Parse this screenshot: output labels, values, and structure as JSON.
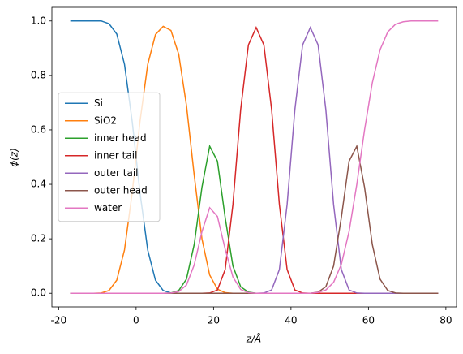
{
  "chart_data": {
    "type": "line",
    "xlabel": "z/Å",
    "ylabel": "ϕ(z)",
    "x": [
      -17,
      -15,
      -13,
      -11,
      -9,
      -7,
      -5,
      -3,
      -1,
      1,
      3,
      5,
      7,
      9,
      11,
      13,
      15,
      17,
      19,
      21,
      23,
      25,
      27,
      29,
      31,
      33,
      35,
      37,
      39,
      41,
      43,
      45,
      47,
      49,
      51,
      53,
      55,
      57,
      59,
      61,
      63,
      65,
      67,
      69,
      71,
      73,
      75,
      77,
      78
    ],
    "series": [
      {
        "name": "Si",
        "color": "#1f77b4",
        "values": [
          1,
          1,
          1,
          1,
          1,
          0.99,
          0.952,
          0.841,
          0.63,
          0.37,
          0.159,
          0.048,
          0.01,
          0.001,
          0,
          0,
          0,
          0,
          0,
          0,
          0,
          0,
          0,
          0,
          0,
          0,
          0,
          0,
          0,
          0,
          0,
          0,
          0,
          0,
          0,
          0,
          0,
          0,
          0,
          0,
          0,
          0,
          0,
          0,
          0,
          0,
          0,
          0,
          0
        ]
      },
      {
        "name": "SiO2",
        "color": "#ff7f0e",
        "values": [
          0,
          0,
          0,
          0,
          0.001,
          0.01,
          0.048,
          0.159,
          0.37,
          0.63,
          0.84,
          0.95,
          0.98,
          0.965,
          0.878,
          0.69,
          0.434,
          0.2,
          0.067,
          0.015,
          0.002,
          0,
          0,
          0,
          0,
          0,
          0,
          0,
          0,
          0,
          0,
          0,
          0,
          0,
          0,
          0,
          0,
          0,
          0,
          0,
          0,
          0,
          0,
          0,
          0,
          0,
          0,
          0,
          0
        ]
      },
      {
        "name": "inner head",
        "color": "#2ca02c",
        "values": [
          0,
          0,
          0,
          0,
          0,
          0,
          0,
          0,
          0,
          0,
          0,
          0,
          0,
          0.001,
          0.01,
          0.052,
          0.179,
          0.389,
          0.54,
          0.485,
          0.278,
          0.1,
          0.024,
          0.004,
          0,
          0,
          0,
          0,
          0,
          0,
          0,
          0,
          0,
          0,
          0,
          0,
          0,
          0,
          0,
          0,
          0,
          0,
          0,
          0,
          0,
          0,
          0,
          0,
          0
        ]
      },
      {
        "name": "inner tail",
        "color": "#d62728",
        "values": [
          0,
          0,
          0,
          0,
          0,
          0,
          0,
          0,
          0,
          0,
          0,
          0,
          0,
          0,
          0,
          0,
          0,
          0,
          0.001,
          0.012,
          0.087,
          0.326,
          0.674,
          0.912,
          0.976,
          0.912,
          0.674,
          0.326,
          0.087,
          0.012,
          0.001,
          0,
          0,
          0,
          0,
          0,
          0,
          0,
          0,
          0,
          0,
          0,
          0,
          0,
          0,
          0,
          0,
          0,
          0
        ]
      },
      {
        "name": "outer tail",
        "color": "#9467bd",
        "values": [
          0,
          0,
          0,
          0,
          0,
          0,
          0,
          0,
          0,
          0,
          0,
          0,
          0,
          0,
          0,
          0,
          0,
          0,
          0,
          0,
          0,
          0,
          0,
          0,
          0,
          0.001,
          0.012,
          0.087,
          0.326,
          0.674,
          0.912,
          0.976,
          0.912,
          0.674,
          0.326,
          0.087,
          0.012,
          0.001,
          0,
          0,
          0,
          0,
          0,
          0,
          0,
          0,
          0,
          0,
          0
        ]
      },
      {
        "name": "outer head",
        "color": "#8c564b",
        "values": [
          0,
          0,
          0,
          0,
          0,
          0,
          0,
          0,
          0,
          0,
          0,
          0,
          0,
          0,
          0,
          0,
          0,
          0,
          0,
          0,
          0,
          0,
          0,
          0,
          0,
          0,
          0,
          0,
          0,
          0,
          0,
          0,
          0.004,
          0.024,
          0.1,
          0.278,
          0.485,
          0.54,
          0.389,
          0.179,
          0.052,
          0.01,
          0.001,
          0,
          0,
          0,
          0,
          0,
          0
        ]
      },
      {
        "name": "water",
        "color": "#e377c2",
        "values": [
          0,
          0,
          0,
          0,
          0,
          0,
          0,
          0,
          0,
          0,
          0,
          0,
          0,
          0.001,
          0.006,
          0.03,
          0.104,
          0.226,
          0.314,
          0.282,
          0.162,
          0.06,
          0.014,
          0.002,
          0,
          0,
          0,
          0,
          0,
          0,
          0,
          0,
          0.003,
          0.012,
          0.04,
          0.106,
          0.227,
          0.4,
          0.6,
          0.773,
          0.894,
          0.96,
          0.988,
          0.997,
          1,
          1,
          1,
          1,
          1
        ]
      }
    ],
    "xlim": [
      -21.75,
      82.75
    ],
    "xticks": [
      -20,
      0,
      20,
      40,
      60,
      80
    ],
    "ylim": [
      -0.05,
      1.05
    ],
    "yticks": [
      {
        "value": 0,
        "label": "0.0"
      },
      0.2,
      0.4,
      0.6,
      0.8,
      {
        "value": 1,
        "label": "1.0"
      }
    ],
    "grid": false,
    "legend": "center left"
  }
}
